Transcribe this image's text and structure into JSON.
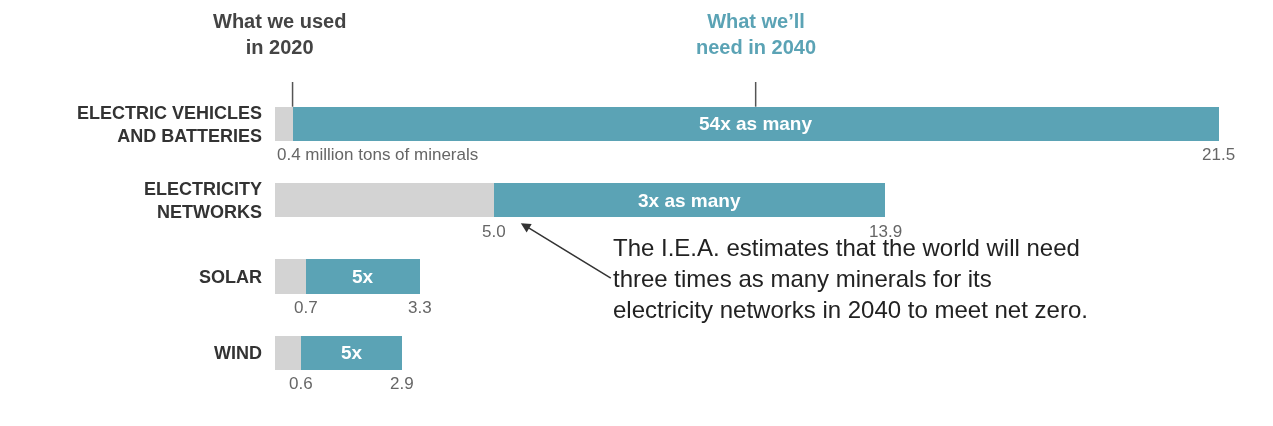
{
  "chart_data": {
    "type": "bar",
    "orientation": "horizontal",
    "stacked": true,
    "categories": [
      "ELECTRIC VEHICLES\nAND BATTERIES",
      "ELECTRICITY\nNETWORKS",
      "SOLAR",
      "WIND"
    ],
    "series": [
      {
        "name": "What we used\nin 2020",
        "color": "#d3d3d3",
        "values": [
          0.4,
          5.0,
          0.7,
          0.6
        ],
        "value_labels": [
          "0.4 million tons of minerals",
          "5.0",
          "0.7",
          "0.6"
        ]
      },
      {
        "name": "What we’ll\nneed in 2040",
        "color": "#5ba3b5",
        "values": [
          21.1,
          8.9,
          2.6,
          2.3
        ]
      }
    ],
    "totals": [
      "21.5",
      "13.9",
      "3.3",
      "2.9"
    ],
    "tick_labels": "y",
    "legend": false,
    "annotations": [
      "54x as many",
      "3x as many",
      "5x",
      "5x",
      "The I.E.A. estimates that the world will need\nthree times as many minerals for its\nelectricity networks in 2040 to meet net zero."
    ]
  }
}
